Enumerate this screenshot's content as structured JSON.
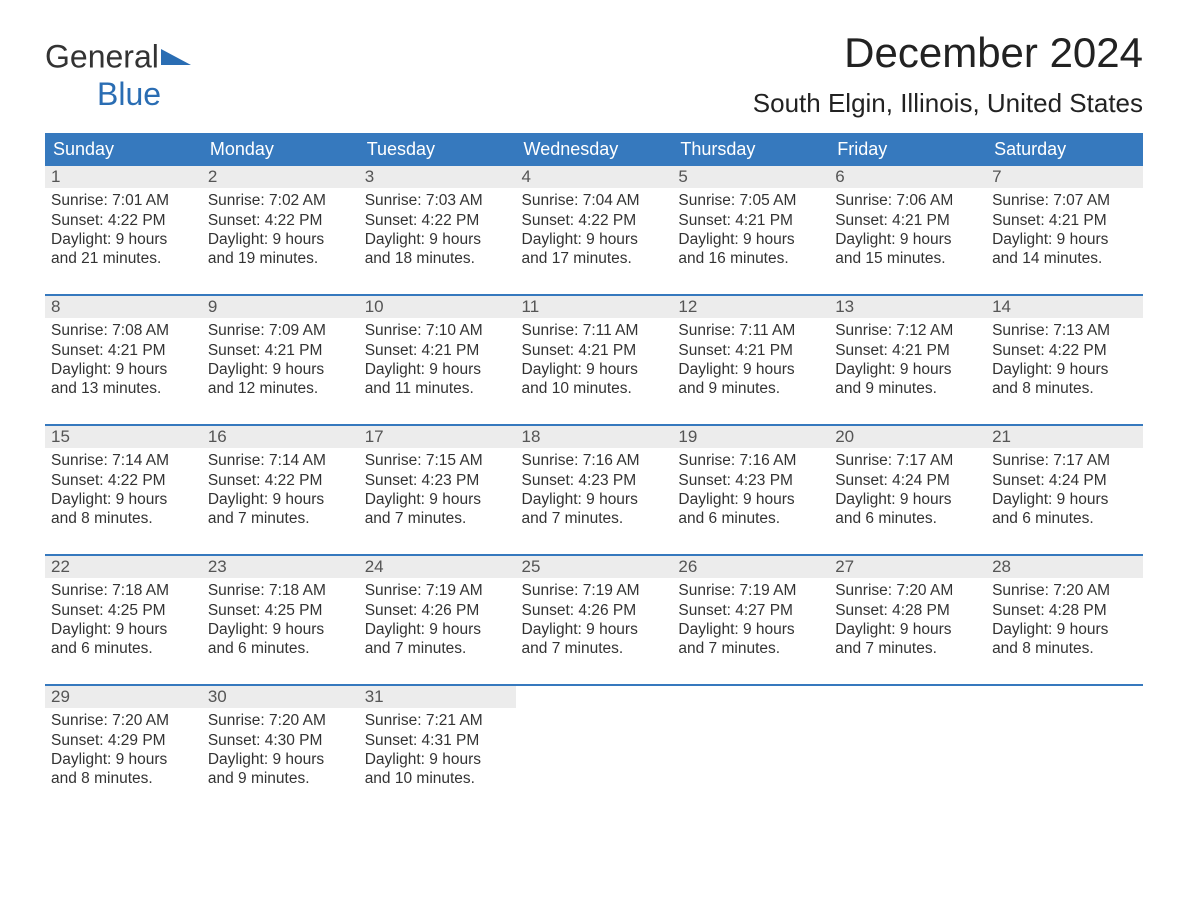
{
  "logo": {
    "word1": "General",
    "word2": "Blue",
    "accent_color": "#2a6db3"
  },
  "title": "December 2024",
  "location": "South Elgin, Illinois, United States",
  "colors": {
    "header_bg": "#3679be",
    "header_text": "#ffffff",
    "daynum_bg": "#ececec",
    "body_text": "#333333",
    "page_bg": "#ffffff"
  },
  "fonts": {
    "title_size": 42,
    "location_size": 26,
    "th_size": 18,
    "cell_size": 15.5
  },
  "day_headers": [
    "Sunday",
    "Monday",
    "Tuesday",
    "Wednesday",
    "Thursday",
    "Friday",
    "Saturday"
  ],
  "weeks": [
    [
      {
        "n": "1",
        "sunrise": "Sunrise: 7:01 AM",
        "sunset": "Sunset: 4:22 PM",
        "d1": "Daylight: 9 hours",
        "d2": "and 21 minutes."
      },
      {
        "n": "2",
        "sunrise": "Sunrise: 7:02 AM",
        "sunset": "Sunset: 4:22 PM",
        "d1": "Daylight: 9 hours",
        "d2": "and 19 minutes."
      },
      {
        "n": "3",
        "sunrise": "Sunrise: 7:03 AM",
        "sunset": "Sunset: 4:22 PM",
        "d1": "Daylight: 9 hours",
        "d2": "and 18 minutes."
      },
      {
        "n": "4",
        "sunrise": "Sunrise: 7:04 AM",
        "sunset": "Sunset: 4:22 PM",
        "d1": "Daylight: 9 hours",
        "d2": "and 17 minutes."
      },
      {
        "n": "5",
        "sunrise": "Sunrise: 7:05 AM",
        "sunset": "Sunset: 4:21 PM",
        "d1": "Daylight: 9 hours",
        "d2": "and 16 minutes."
      },
      {
        "n": "6",
        "sunrise": "Sunrise: 7:06 AM",
        "sunset": "Sunset: 4:21 PM",
        "d1": "Daylight: 9 hours",
        "d2": "and 15 minutes."
      },
      {
        "n": "7",
        "sunrise": "Sunrise: 7:07 AM",
        "sunset": "Sunset: 4:21 PM",
        "d1": "Daylight: 9 hours",
        "d2": "and 14 minutes."
      }
    ],
    [
      {
        "n": "8",
        "sunrise": "Sunrise: 7:08 AM",
        "sunset": "Sunset: 4:21 PM",
        "d1": "Daylight: 9 hours",
        "d2": "and 13 minutes."
      },
      {
        "n": "9",
        "sunrise": "Sunrise: 7:09 AM",
        "sunset": "Sunset: 4:21 PM",
        "d1": "Daylight: 9 hours",
        "d2": "and 12 minutes."
      },
      {
        "n": "10",
        "sunrise": "Sunrise: 7:10 AM",
        "sunset": "Sunset: 4:21 PM",
        "d1": "Daylight: 9 hours",
        "d2": "and 11 minutes."
      },
      {
        "n": "11",
        "sunrise": "Sunrise: 7:11 AM",
        "sunset": "Sunset: 4:21 PM",
        "d1": "Daylight: 9 hours",
        "d2": "and 10 minutes."
      },
      {
        "n": "12",
        "sunrise": "Sunrise: 7:11 AM",
        "sunset": "Sunset: 4:21 PM",
        "d1": "Daylight: 9 hours",
        "d2": "and 9 minutes."
      },
      {
        "n": "13",
        "sunrise": "Sunrise: 7:12 AM",
        "sunset": "Sunset: 4:21 PM",
        "d1": "Daylight: 9 hours",
        "d2": "and 9 minutes."
      },
      {
        "n": "14",
        "sunrise": "Sunrise: 7:13 AM",
        "sunset": "Sunset: 4:22 PM",
        "d1": "Daylight: 9 hours",
        "d2": "and 8 minutes."
      }
    ],
    [
      {
        "n": "15",
        "sunrise": "Sunrise: 7:14 AM",
        "sunset": "Sunset: 4:22 PM",
        "d1": "Daylight: 9 hours",
        "d2": "and 8 minutes."
      },
      {
        "n": "16",
        "sunrise": "Sunrise: 7:14 AM",
        "sunset": "Sunset: 4:22 PM",
        "d1": "Daylight: 9 hours",
        "d2": "and 7 minutes."
      },
      {
        "n": "17",
        "sunrise": "Sunrise: 7:15 AM",
        "sunset": "Sunset: 4:23 PM",
        "d1": "Daylight: 9 hours",
        "d2": "and 7 minutes."
      },
      {
        "n": "18",
        "sunrise": "Sunrise: 7:16 AM",
        "sunset": "Sunset: 4:23 PM",
        "d1": "Daylight: 9 hours",
        "d2": "and 7 minutes."
      },
      {
        "n": "19",
        "sunrise": "Sunrise: 7:16 AM",
        "sunset": "Sunset: 4:23 PM",
        "d1": "Daylight: 9 hours",
        "d2": "and 6 minutes."
      },
      {
        "n": "20",
        "sunrise": "Sunrise: 7:17 AM",
        "sunset": "Sunset: 4:24 PM",
        "d1": "Daylight: 9 hours",
        "d2": "and 6 minutes."
      },
      {
        "n": "21",
        "sunrise": "Sunrise: 7:17 AM",
        "sunset": "Sunset: 4:24 PM",
        "d1": "Daylight: 9 hours",
        "d2": "and 6 minutes."
      }
    ],
    [
      {
        "n": "22",
        "sunrise": "Sunrise: 7:18 AM",
        "sunset": "Sunset: 4:25 PM",
        "d1": "Daylight: 9 hours",
        "d2": "and 6 minutes."
      },
      {
        "n": "23",
        "sunrise": "Sunrise: 7:18 AM",
        "sunset": "Sunset: 4:25 PM",
        "d1": "Daylight: 9 hours",
        "d2": "and 6 minutes."
      },
      {
        "n": "24",
        "sunrise": "Sunrise: 7:19 AM",
        "sunset": "Sunset: 4:26 PM",
        "d1": "Daylight: 9 hours",
        "d2": "and 7 minutes."
      },
      {
        "n": "25",
        "sunrise": "Sunrise: 7:19 AM",
        "sunset": "Sunset: 4:26 PM",
        "d1": "Daylight: 9 hours",
        "d2": "and 7 minutes."
      },
      {
        "n": "26",
        "sunrise": "Sunrise: 7:19 AM",
        "sunset": "Sunset: 4:27 PM",
        "d1": "Daylight: 9 hours",
        "d2": "and 7 minutes."
      },
      {
        "n": "27",
        "sunrise": "Sunrise: 7:20 AM",
        "sunset": "Sunset: 4:28 PM",
        "d1": "Daylight: 9 hours",
        "d2": "and 7 minutes."
      },
      {
        "n": "28",
        "sunrise": "Sunrise: 7:20 AM",
        "sunset": "Sunset: 4:28 PM",
        "d1": "Daylight: 9 hours",
        "d2": "and 8 minutes."
      }
    ],
    [
      {
        "n": "29",
        "sunrise": "Sunrise: 7:20 AM",
        "sunset": "Sunset: 4:29 PM",
        "d1": "Daylight: 9 hours",
        "d2": "and 8 minutes."
      },
      {
        "n": "30",
        "sunrise": "Sunrise: 7:20 AM",
        "sunset": "Sunset: 4:30 PM",
        "d1": "Daylight: 9 hours",
        "d2": "and 9 minutes."
      },
      {
        "n": "31",
        "sunrise": "Sunrise: 7:21 AM",
        "sunset": "Sunset: 4:31 PM",
        "d1": "Daylight: 9 hours",
        "d2": "and 10 minutes."
      },
      null,
      null,
      null,
      null
    ]
  ]
}
